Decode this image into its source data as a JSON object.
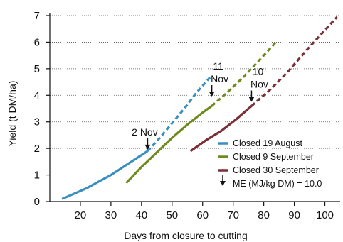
{
  "chart_data": {
    "type": "line",
    "title": "",
    "xlabel": "Days from closure to cutting",
    "ylabel": "Yield (t DM/ha)",
    "xlim": [
      10,
      105
    ],
    "ylim": [
      0,
      7
    ],
    "xticks": [
      20,
      30,
      40,
      50,
      60,
      70,
      80,
      90,
      100
    ],
    "yticks": [
      0,
      1,
      2,
      3,
      4,
      5,
      6,
      7
    ],
    "grid": "horizontal-dotted",
    "legend_position": "bottom-right",
    "series": [
      {
        "name": "Closed 19 August",
        "color": "#3a8fc0",
        "solid": [
          [
            14,
            0.1
          ],
          [
            18,
            0.3
          ],
          [
            22,
            0.5
          ],
          [
            26,
            0.75
          ],
          [
            30,
            1.0
          ],
          [
            34,
            1.3
          ],
          [
            38,
            1.6
          ],
          [
            42,
            1.9
          ]
        ],
        "dashed": [
          [
            42,
            1.9
          ],
          [
            46,
            2.4
          ],
          [
            50,
            2.95
          ],
          [
            54,
            3.5
          ],
          [
            58,
            4.1
          ],
          [
            63,
            4.75
          ]
        ]
      },
      {
        "name": "Closed 9 September",
        "color": "#6f8a1f",
        "solid": [
          [
            35,
            0.7
          ],
          [
            40,
            1.3
          ],
          [
            45,
            1.85
          ],
          [
            50,
            2.4
          ],
          [
            55,
            2.9
          ],
          [
            60,
            3.35
          ],
          [
            63,
            3.6
          ]
        ],
        "dashed": [
          [
            63,
            3.6
          ],
          [
            68,
            4.1
          ],
          [
            73,
            4.65
          ],
          [
            78,
            5.25
          ],
          [
            84,
            6.0
          ]
        ]
      },
      {
        "name": "Closed 30 September",
        "color": "#7a2e36",
        "solid": [
          [
            56,
            1.9
          ],
          [
            61,
            2.3
          ],
          [
            66,
            2.65
          ],
          [
            71,
            3.1
          ],
          [
            76,
            3.6
          ]
        ],
        "dashed": [
          [
            76,
            3.6
          ],
          [
            82,
            4.2
          ],
          [
            88,
            4.9
          ],
          [
            94,
            5.7
          ],
          [
            100,
            6.45
          ],
          [
            104,
            6.95
          ]
        ]
      }
    ],
    "annotations": [
      {
        "text": "2 Nov",
        "arrow_at": [
          42,
          1.9
        ]
      },
      {
        "text": "11 Nov",
        "arrow_at": [
          63,
          3.9
        ]
      },
      {
        "text": "10 Nov",
        "arrow_at": [
          76,
          3.7
        ]
      }
    ],
    "legend": {
      "items": [
        "Closed 19 August",
        "Closed 9 September",
        "Closed 30 September"
      ],
      "marker_note": "ME (MJ/kg DM) = 10.0"
    }
  }
}
